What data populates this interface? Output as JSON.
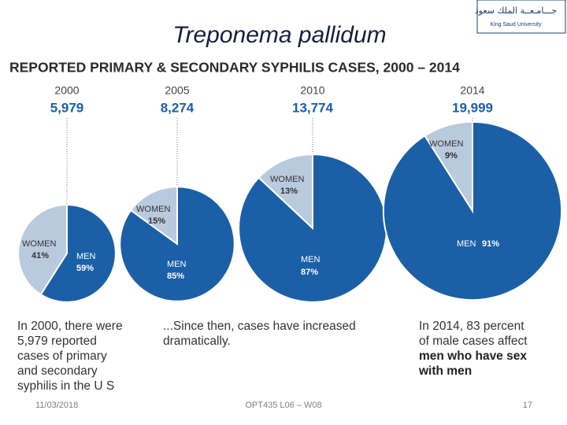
{
  "slide": {
    "title": "Treponema pallidum",
    "logo_arabic": "جـــامـعــة الملك سعود",
    "logo_english": "King Saud University",
    "date": "11/03/2018",
    "course": "OPT435 L06 – W08",
    "page": "17"
  },
  "infographic_title": "REPORTED PRIMARY & SECONDARY SYPHILIS CASES, 2000 – 2014",
  "chart_data": [
    {
      "type": "pie",
      "title": "2000",
      "total": 5979,
      "total_label": "5,979",
      "categories": [
        "WOMEN",
        "MEN"
      ],
      "values": [
        41,
        59
      ],
      "value_labels": [
        "41%",
        "59%"
      ],
      "colors": [
        "#b9cade",
        "#1b5fa7"
      ]
    },
    {
      "type": "pie",
      "title": "2005",
      "total": 8274,
      "total_label": "8,274",
      "categories": [
        "WOMEN",
        "MEN"
      ],
      "values": [
        15,
        85
      ],
      "value_labels": [
        "15%",
        "85%"
      ],
      "colors": [
        "#b9cade",
        "#1b5fa7"
      ]
    },
    {
      "type": "pie",
      "title": "2010",
      "total": 13774,
      "total_label": "13,774",
      "categories": [
        "WOMEN",
        "MEN"
      ],
      "values": [
        13,
        87
      ],
      "value_labels": [
        "13%",
        "87%"
      ],
      "colors": [
        "#b9cade",
        "#1b5fa7"
      ]
    },
    {
      "type": "pie",
      "title": "2014",
      "total": 19999,
      "total_label": "19,999",
      "categories": [
        "WOMEN",
        "MEN"
      ],
      "values": [
        9,
        91
      ],
      "value_labels": [
        "9%",
        "91%"
      ],
      "colors": [
        "#b9cade",
        "#1b5fa7"
      ]
    }
  ],
  "captions": [
    {
      "lines": [
        "In 2000, there were",
        "5,979 reported",
        "cases of primary",
        "and secondary",
        "syphilis in the U S"
      ]
    },
    {
      "lines": [
        "...Since then, cases have increased",
        "dramatically."
      ]
    },
    {
      "lines": [
        "In 2014, 83 percent",
        "of male cases affect"
      ],
      "bold_lines": [
        "men who have sex",
        "with men"
      ]
    }
  ]
}
